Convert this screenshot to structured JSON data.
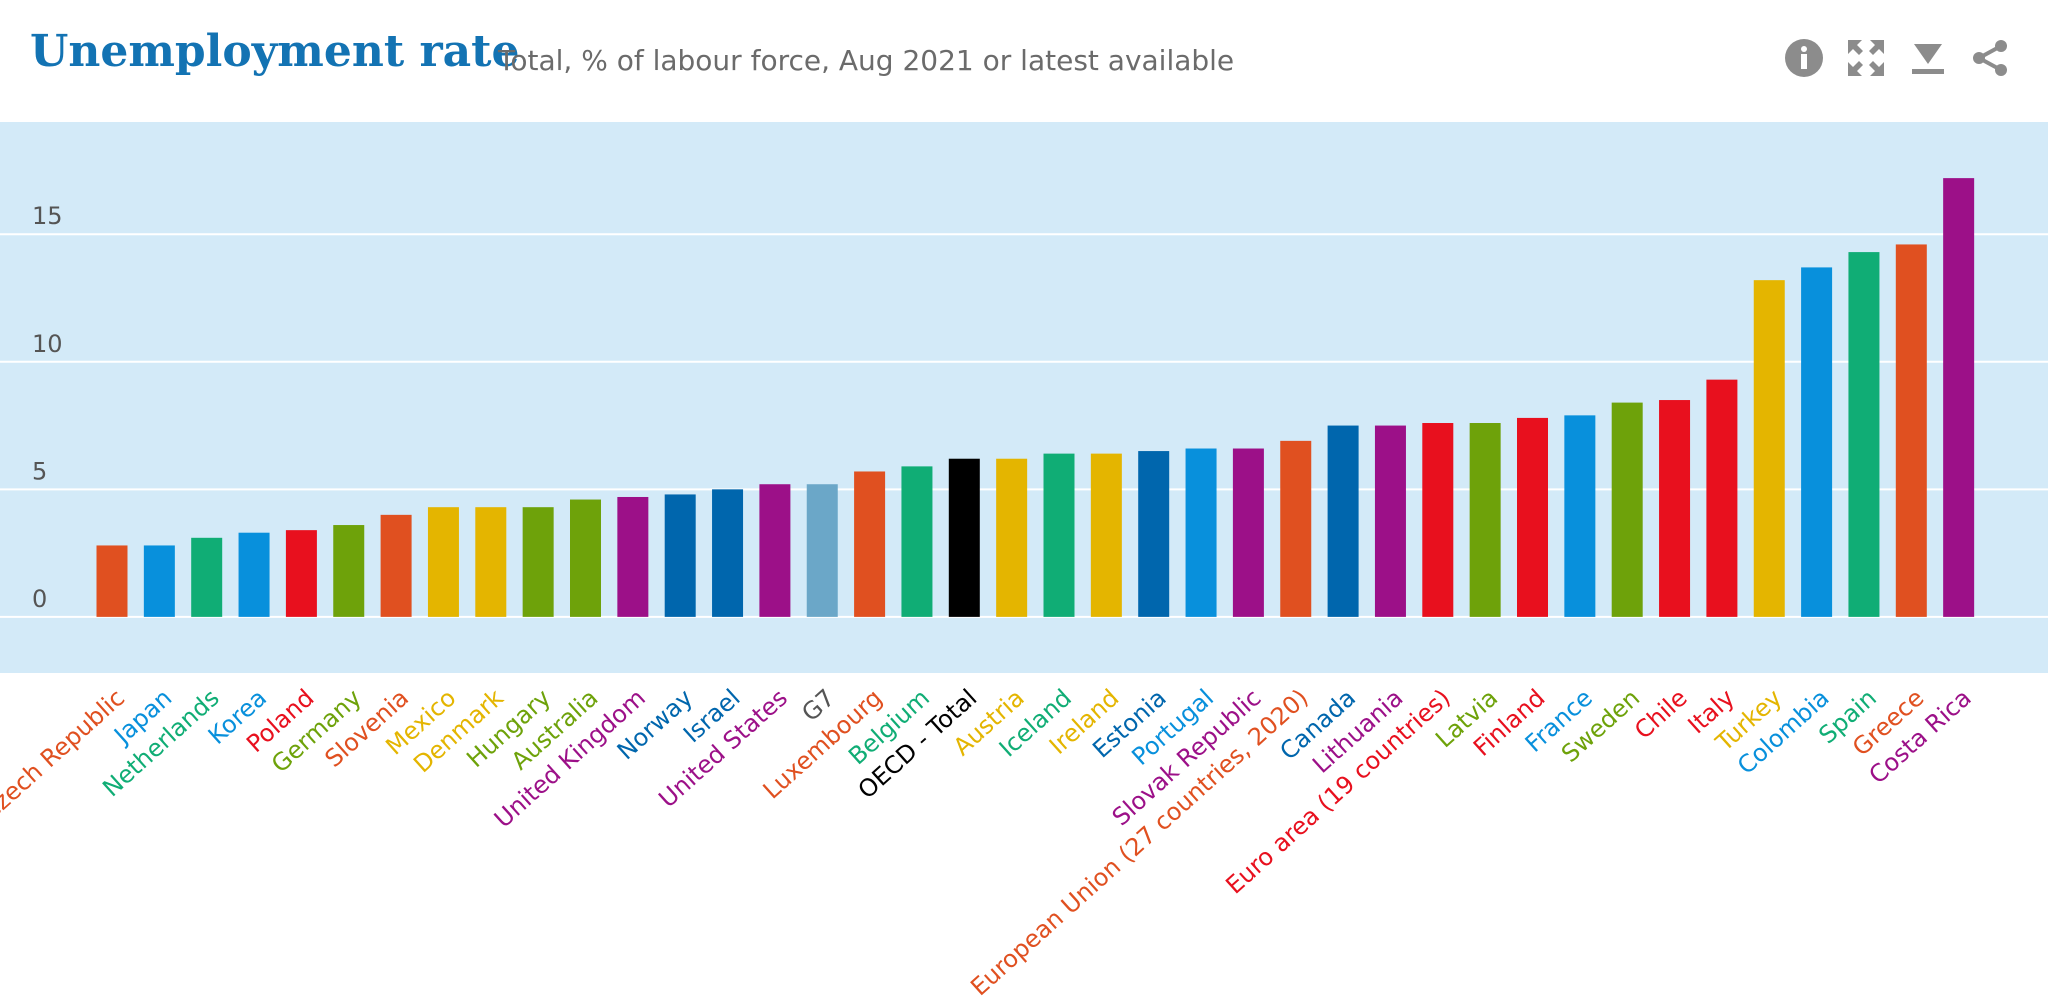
{
  "header": {
    "title": "Unemployment rate",
    "subtitle": "Total, % of labour force, Aug 2021 or latest available"
  },
  "toolbar": {
    "info_icon": "info-icon",
    "fullscreen_icon": "expand-icon",
    "download_icon": "download-icon",
    "share_icon": "share-icon"
  },
  "chart_data": {
    "type": "bar",
    "categories": [
      "Czech Republic",
      "Japan",
      "Netherlands",
      "Korea",
      "Poland",
      "Germany",
      "Slovenia",
      "Mexico",
      "Denmark",
      "Hungary",
      "Australia",
      "United Kingdom",
      "Norway",
      "Israel",
      "United States",
      "G7",
      "Luxembourg",
      "Belgium",
      "OECD - Total",
      "Austria",
      "Iceland",
      "Ireland",
      "Estonia",
      "Portugal",
      "Slovak Republic",
      "European Union (27 countries, 2020)",
      "Canada",
      "Lithuania",
      "Euro area (19 countries)",
      "Latvia",
      "Finland",
      "France",
      "Sweden",
      "Chile",
      "Italy",
      "Turkey",
      "Colombia",
      "Spain",
      "Greece",
      "Costa Rica"
    ],
    "values": [
      2.8,
      2.8,
      3.1,
      3.3,
      3.4,
      3.6,
      4.0,
      4.3,
      4.3,
      4.3,
      4.6,
      4.7,
      4.8,
      5.0,
      5.2,
      5.2,
      5.7,
      5.9,
      6.2,
      6.2,
      6.4,
      6.4,
      6.5,
      6.6,
      6.6,
      6.9,
      7.5,
      7.5,
      7.6,
      7.6,
      7.8,
      7.9,
      8.4,
      8.5,
      9.3,
      13.2,
      13.7,
      14.3,
      14.6,
      17.2
    ],
    "colors": [
      "#e05020",
      "#0890dc",
      "#10ad75",
      "#0890dc",
      "#e8101e",
      "#6ea20a",
      "#e05020",
      "#e4b500",
      "#e4b500",
      "#6ea20a",
      "#6ea20a",
      "#9c1088",
      "#0066ad",
      "#0066ad",
      "#9c1088",
      "#6ba7c8",
      "#e05020",
      "#10ad75",
      "#000000",
      "#e4b500",
      "#10ad75",
      "#e4b500",
      "#0066ad",
      "#0890dc",
      "#9c1088",
      "#e05020",
      "#0066ad",
      "#9c1088",
      "#e8101e",
      "#6ea20a",
      "#e8101e",
      "#0890dc",
      "#6ea20a",
      "#e8101e",
      "#e8101e",
      "#e4b500",
      "#0890dc",
      "#10ad75",
      "#e05020",
      "#9c1088"
    ],
    "label_colors": [
      "#e05020",
      "#0890dc",
      "#10ad75",
      "#0890dc",
      "#e8101e",
      "#6ea20a",
      "#e05020",
      "#e4b500",
      "#e4b500",
      "#6ea20a",
      "#6ea20a",
      "#9c1088",
      "#0066ad",
      "#0066ad",
      "#9c1088",
      "#555555",
      "#e05020",
      "#10ad75",
      "#000000",
      "#e4b500",
      "#10ad75",
      "#e4b500",
      "#0066ad",
      "#0890dc",
      "#9c1088",
      "#e05020",
      "#0066ad",
      "#9c1088",
      "#e8101e",
      "#6ea20a",
      "#e8101e",
      "#0890dc",
      "#6ea20a",
      "#e8101e",
      "#e8101e",
      "#e4b500",
      "#0890dc",
      "#10ad75",
      "#e05020",
      "#9c1088"
    ],
    "yticks": [
      0,
      5,
      10,
      15
    ],
    "ylim": [
      -2.2,
      19.4
    ],
    "grid": true,
    "background_color": "#d3eaf8",
    "gridline_color": "#ffffff",
    "xlabel": "",
    "ylabel": ""
  }
}
